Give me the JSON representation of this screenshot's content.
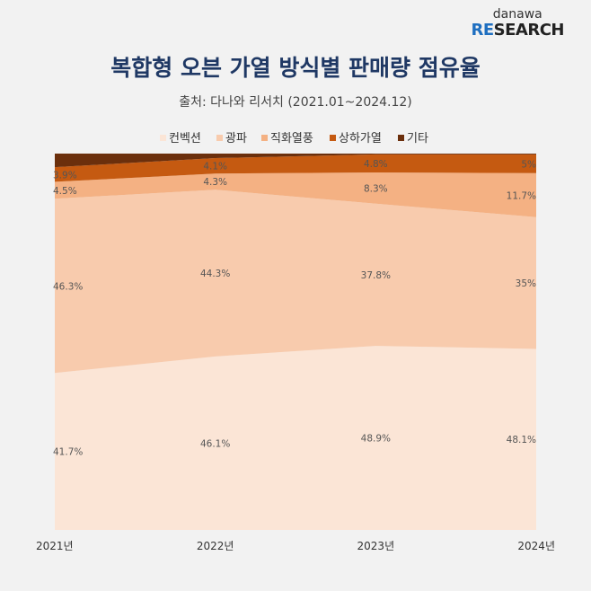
{
  "logo": {
    "top": "danawa",
    "accent": "RE",
    "rest": "SEARCH"
  },
  "chart_data": {
    "type": "area",
    "stacked": "percent",
    "title": "복합형 오븐 가열 방식별 판매량 점유율",
    "subtitle": "출처: 다나와 리서치 (2021.01~2024.12)",
    "categories": [
      "2021년",
      "2022년",
      "2023년",
      "2024년"
    ],
    "legend_position": "top",
    "series": [
      {
        "name": "컨벡션",
        "color": "#fbe5d6",
        "values": [
          41.7,
          46.1,
          48.9,
          48.1
        ],
        "labels": [
          "41.7%",
          "46.1%",
          "48.9%",
          "48.1%"
        ]
      },
      {
        "name": "광파",
        "color": "#f8cbad",
        "values": [
          46.3,
          44.3,
          37.8,
          35
        ],
        "labels": [
          "46.3%",
          "44.3%",
          "37.8%",
          "35%"
        ]
      },
      {
        "name": "직화열풍",
        "color": "#f4b183",
        "values": [
          4.5,
          4.3,
          8.3,
          11.7
        ],
        "labels": [
          "4.5%",
          "4.3%",
          "8.3%",
          "11.7%"
        ]
      },
      {
        "name": "상하가열",
        "color": "#c55a11",
        "values": [
          3.9,
          4.1,
          4.8,
          5
        ],
        "labels": [
          "3.9%",
          "4.1%",
          "4.8%",
          "5%"
        ]
      },
      {
        "name": "기타",
        "color": "#6b2f0c",
        "values": [
          3.6,
          1.2,
          0.2,
          0.2
        ],
        "labels": []
      }
    ],
    "ylim": [
      0,
      100
    ]
  }
}
